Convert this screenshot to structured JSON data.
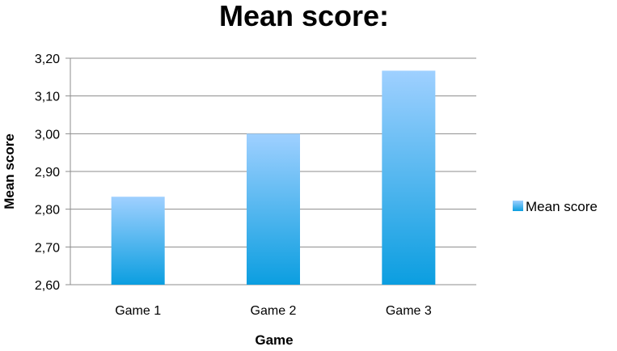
{
  "chart_data": {
    "type": "bar",
    "title": "Mean score:",
    "xlabel": "Game",
    "ylabel": "Mean score",
    "categories": [
      "Game 1",
      "Game 2",
      "Game 3"
    ],
    "series": [
      {
        "name": "Mean score",
        "values": [
          2.833,
          3.0,
          3.167
        ]
      }
    ],
    "ylim": [
      2.6,
      3.2
    ],
    "yticks": [
      "2,60",
      "2,70",
      "2,80",
      "2,90",
      "3,00",
      "3,10",
      "3,20"
    ],
    "grid": true,
    "legend_position": "right",
    "colors": {
      "bar_top": "#9fd0ff",
      "bar_bottom": "#0b9ee0",
      "grid": "#8c8c8c"
    }
  }
}
